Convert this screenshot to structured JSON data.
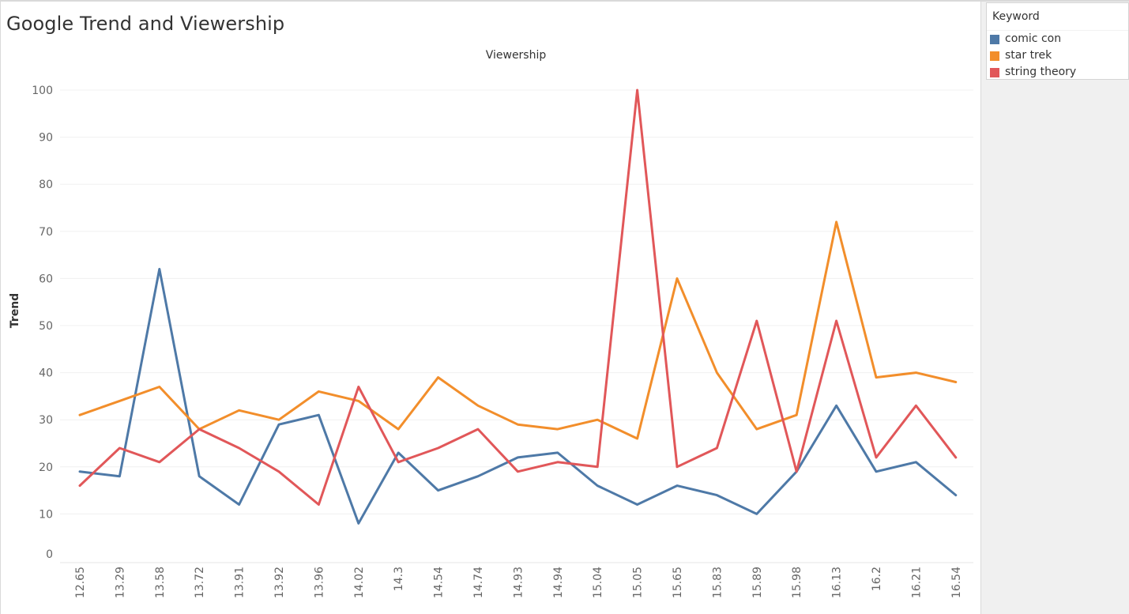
{
  "title": "Google Trend and Viewership",
  "legend": {
    "title": "Keyword",
    "items": [
      {
        "label": "comic con",
        "color": "#4e79a7"
      },
      {
        "label": "star trek",
        "color": "#f28e2b"
      },
      {
        "label": "string theory",
        "color": "#e15759"
      }
    ]
  },
  "chart_data": {
    "type": "line",
    "title": "Viewership",
    "xlabel": "",
    "ylabel": "Trend",
    "x": [
      "12.65",
      "13.29",
      "13.58",
      "13.72",
      "13.91",
      "13.92",
      "13.96",
      "14.02",
      "14.3",
      "14.54",
      "14.74",
      "14.93",
      "14.94",
      "15.04",
      "15.05",
      "15.65",
      "15.83",
      "15.89",
      "15.98",
      "16.13",
      "16.2",
      "16.21",
      "16.54"
    ],
    "y_ticks": [
      0,
      10,
      20,
      30,
      40,
      50,
      60,
      70,
      80,
      90,
      100
    ],
    "ylim": [
      0,
      100
    ],
    "grid": true,
    "legend_position": "top-right",
    "series": [
      {
        "name": "comic con",
        "color": "#4e79a7",
        "values": [
          19,
          18,
          62,
          18,
          12,
          29,
          31,
          8,
          23,
          15,
          18,
          22,
          23,
          16,
          12,
          16,
          14,
          10,
          19,
          33,
          19,
          21,
          14
        ]
      },
      {
        "name": "star trek",
        "color": "#f28e2b",
        "values": [
          31,
          34,
          37,
          28,
          32,
          30,
          36,
          34,
          28,
          39,
          33,
          29,
          28,
          30,
          26,
          60,
          40,
          28,
          31,
          72,
          39,
          40,
          38
        ]
      },
      {
        "name": "string theory",
        "color": "#e15759",
        "values": [
          16,
          24,
          21,
          28,
          24,
          19,
          12,
          37,
          21,
          24,
          28,
          19,
          21,
          20,
          100,
          20,
          24,
          51,
          19,
          51,
          22,
          33,
          22
        ]
      }
    ]
  }
}
